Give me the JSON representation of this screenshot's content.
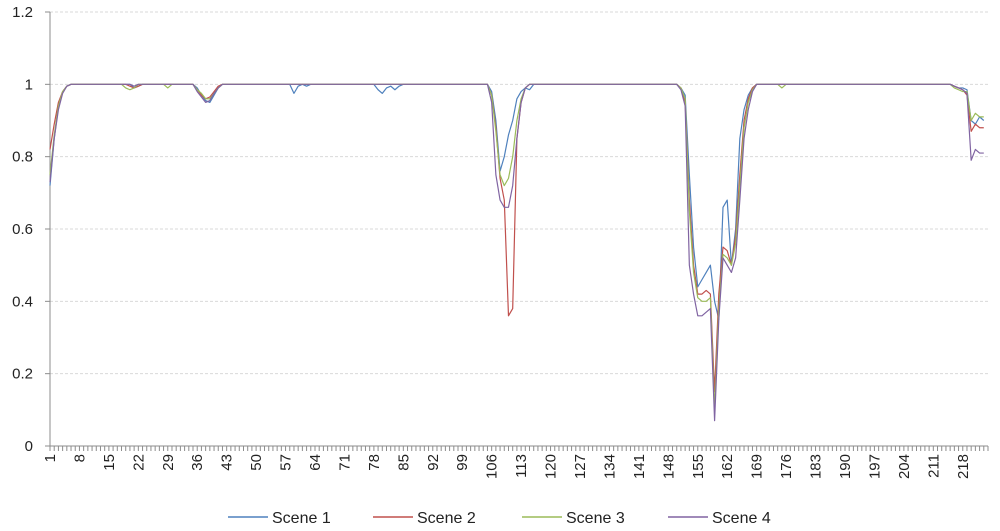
{
  "chart_data": {
    "type": "line",
    "title": "",
    "xlabel": "",
    "ylabel": "",
    "xlim": [
      1,
      224
    ],
    "ylim": [
      0,
      1.2
    ],
    "grid": true,
    "legend": "bottom",
    "y_ticks": [
      "0",
      "0.2",
      "0.4",
      "0.6",
      "0.8",
      "1",
      "1.2"
    ],
    "x_ticks": [
      "1",
      "8",
      "15",
      "22",
      "29",
      "36",
      "43",
      "50",
      "57",
      "64",
      "71",
      "78",
      "85",
      "92",
      "99",
      "106",
      "113",
      "120",
      "127",
      "134",
      "141",
      "148",
      "155",
      "162",
      "169",
      "176",
      "183",
      "190",
      "197",
      "204",
      "211",
      "218"
    ],
    "series": [
      {
        "name": "Scene 1",
        "color": "#4f81bd",
        "points": [
          [
            1,
            0.72
          ],
          [
            2,
            0.85
          ],
          [
            3,
            0.94
          ],
          [
            4,
            0.98
          ],
          [
            5,
            0.995
          ],
          [
            6,
            1
          ],
          [
            20,
            1
          ],
          [
            21,
            0.99
          ],
          [
            22,
            0.995
          ],
          [
            23,
            1
          ],
          [
            35,
            1
          ],
          [
            36,
            0.99
          ],
          [
            37,
            0.97
          ],
          [
            38,
            0.955
          ],
          [
            39,
            0.95
          ],
          [
            40,
            0.97
          ],
          [
            41,
            0.99
          ],
          [
            42,
            1
          ],
          [
            58,
            1
          ],
          [
            59,
            0.975
          ],
          [
            60,
            0.995
          ],
          [
            61,
            1
          ],
          [
            62,
            0.995
          ],
          [
            63,
            1
          ],
          [
            78,
            1
          ],
          [
            79,
            0.985
          ],
          [
            80,
            0.975
          ],
          [
            81,
            0.99
          ],
          [
            82,
            0.995
          ],
          [
            83,
            0.985
          ],
          [
            84,
            0.995
          ],
          [
            85,
            1
          ],
          [
            105,
            1
          ],
          [
            106,
            0.98
          ],
          [
            107,
            0.9
          ],
          [
            108,
            0.76
          ],
          [
            109,
            0.8
          ],
          [
            110,
            0.86
          ],
          [
            111,
            0.9
          ],
          [
            112,
            0.96
          ],
          [
            113,
            0.98
          ],
          [
            114,
            0.99
          ],
          [
            115,
            0.985
          ],
          [
            116,
            1
          ],
          [
            150,
            1
          ],
          [
            151,
            0.99
          ],
          [
            152,
            0.97
          ],
          [
            153,
            0.75
          ],
          [
            154,
            0.55
          ],
          [
            155,
            0.44
          ],
          [
            156,
            0.46
          ],
          [
            157,
            0.48
          ],
          [
            158,
            0.5
          ],
          [
            159,
            0.4
          ],
          [
            160,
            0.35
          ],
          [
            161,
            0.66
          ],
          [
            162,
            0.68
          ],
          [
            163,
            0.5
          ],
          [
            164,
            0.6
          ],
          [
            165,
            0.85
          ],
          [
            166,
            0.93
          ],
          [
            167,
            0.97
          ],
          [
            168,
            0.99
          ],
          [
            169,
            1
          ],
          [
            215,
            1
          ],
          [
            216,
            0.995
          ],
          [
            217,
            0.99
          ],
          [
            218,
            0.99
          ],
          [
            219,
            0.985
          ],
          [
            220,
            0.9
          ],
          [
            221,
            0.89
          ],
          [
            222,
            0.91
          ],
          [
            223,
            0.9
          ]
        ]
      },
      {
        "name": "Scene 2",
        "color": "#c0504d",
        "points": [
          [
            1,
            0.82
          ],
          [
            2,
            0.89
          ],
          [
            3,
            0.95
          ],
          [
            4,
            0.98
          ],
          [
            5,
            0.995
          ],
          [
            6,
            1
          ],
          [
            19,
            1
          ],
          [
            20,
            0.995
          ],
          [
            21,
            0.99
          ],
          [
            22,
            0.995
          ],
          [
            23,
            1
          ],
          [
            35,
            1
          ],
          [
            36,
            0.985
          ],
          [
            37,
            0.97
          ],
          [
            38,
            0.96
          ],
          [
            39,
            0.965
          ],
          [
            40,
            0.98
          ],
          [
            41,
            0.995
          ],
          [
            42,
            1
          ],
          [
            105,
            1
          ],
          [
            106,
            0.97
          ],
          [
            107,
            0.88
          ],
          [
            108,
            0.74
          ],
          [
            109,
            0.68
          ],
          [
            110,
            0.36
          ],
          [
            111,
            0.38
          ],
          [
            112,
            0.85
          ],
          [
            113,
            0.95
          ],
          [
            114,
            0.99
          ],
          [
            115,
            1
          ],
          [
            150,
            1
          ],
          [
            151,
            0.99
          ],
          [
            152,
            0.95
          ],
          [
            153,
            0.68
          ],
          [
            154,
            0.5
          ],
          [
            155,
            0.42
          ],
          [
            156,
            0.42
          ],
          [
            157,
            0.43
          ],
          [
            158,
            0.42
          ],
          [
            159,
            0.15
          ],
          [
            160,
            0.42
          ],
          [
            161,
            0.55
          ],
          [
            162,
            0.54
          ],
          [
            163,
            0.5
          ],
          [
            164,
            0.58
          ],
          [
            165,
            0.75
          ],
          [
            166,
            0.9
          ],
          [
            167,
            0.96
          ],
          [
            168,
            0.99
          ],
          [
            169,
            1
          ],
          [
            215,
            1
          ],
          [
            216,
            0.995
          ],
          [
            217,
            0.99
          ],
          [
            218,
            0.985
          ],
          [
            219,
            0.97
          ],
          [
            220,
            0.87
          ],
          [
            221,
            0.89
          ],
          [
            222,
            0.88
          ],
          [
            223,
            0.88
          ]
        ]
      },
      {
        "name": "Scene 3",
        "color": "#9bbb59",
        "points": [
          [
            1,
            0.75
          ],
          [
            2,
            0.86
          ],
          [
            3,
            0.94
          ],
          [
            4,
            0.98
          ],
          [
            5,
            0.995
          ],
          [
            6,
            1
          ],
          [
            18,
            1
          ],
          [
            19,
            0.99
          ],
          [
            20,
            0.985
          ],
          [
            21,
            0.99
          ],
          [
            22,
            1
          ],
          [
            28,
            1
          ],
          [
            29,
            0.99
          ],
          [
            30,
            1
          ],
          [
            35,
            1
          ],
          [
            36,
            0.985
          ],
          [
            37,
            0.975
          ],
          [
            38,
            0.96
          ],
          [
            39,
            0.96
          ],
          [
            40,
            0.975
          ],
          [
            41,
            0.99
          ],
          [
            42,
            1
          ],
          [
            105,
            1
          ],
          [
            106,
            0.97
          ],
          [
            107,
            0.87
          ],
          [
            108,
            0.75
          ],
          [
            109,
            0.72
          ],
          [
            110,
            0.74
          ],
          [
            111,
            0.8
          ],
          [
            112,
            0.9
          ],
          [
            113,
            0.96
          ],
          [
            114,
            0.99
          ],
          [
            115,
            1
          ],
          [
            150,
            1
          ],
          [
            151,
            0.99
          ],
          [
            152,
            0.96
          ],
          [
            153,
            0.65
          ],
          [
            154,
            0.48
          ],
          [
            155,
            0.41
          ],
          [
            156,
            0.4
          ],
          [
            157,
            0.4
          ],
          [
            158,
            0.41
          ],
          [
            159,
            0.1
          ],
          [
            160,
            0.38
          ],
          [
            161,
            0.53
          ],
          [
            162,
            0.52
          ],
          [
            163,
            0.5
          ],
          [
            164,
            0.56
          ],
          [
            165,
            0.72
          ],
          [
            166,
            0.88
          ],
          [
            167,
            0.95
          ],
          [
            168,
            0.985
          ],
          [
            169,
            1
          ],
          [
            174,
            1
          ],
          [
            175,
            0.99
          ],
          [
            176,
            1
          ],
          [
            215,
            1
          ],
          [
            216,
            0.99
          ],
          [
            217,
            0.985
          ],
          [
            218,
            0.98
          ],
          [
            219,
            0.98
          ],
          [
            220,
            0.9
          ],
          [
            221,
            0.92
          ],
          [
            222,
            0.91
          ],
          [
            223,
            0.91
          ]
        ]
      },
      {
        "name": "Scene 4",
        "color": "#8064a2",
        "points": [
          [
            1,
            0.73
          ],
          [
            2,
            0.85
          ],
          [
            3,
            0.93
          ],
          [
            4,
            0.975
          ],
          [
            5,
            0.995
          ],
          [
            6,
            1
          ],
          [
            20,
            1
          ],
          [
            21,
            0.995
          ],
          [
            22,
            1
          ],
          [
            35,
            1
          ],
          [
            36,
            0.98
          ],
          [
            37,
            0.965
          ],
          [
            38,
            0.95
          ],
          [
            39,
            0.955
          ],
          [
            40,
            0.975
          ],
          [
            41,
            0.99
          ],
          [
            42,
            1
          ],
          [
            105,
            1
          ],
          [
            106,
            0.95
          ],
          [
            107,
            0.75
          ],
          [
            108,
            0.68
          ],
          [
            109,
            0.66
          ],
          [
            110,
            0.66
          ],
          [
            111,
            0.72
          ],
          [
            112,
            0.85
          ],
          [
            113,
            0.95
          ],
          [
            114,
            0.99
          ],
          [
            115,
            1
          ],
          [
            150,
            1
          ],
          [
            151,
            0.985
          ],
          [
            152,
            0.94
          ],
          [
            153,
            0.5
          ],
          [
            154,
            0.42
          ],
          [
            155,
            0.36
          ],
          [
            156,
            0.36
          ],
          [
            157,
            0.37
          ],
          [
            158,
            0.38
          ],
          [
            159,
            0.07
          ],
          [
            160,
            0.35
          ],
          [
            161,
            0.52
          ],
          [
            162,
            0.5
          ],
          [
            163,
            0.48
          ],
          [
            164,
            0.52
          ],
          [
            165,
            0.68
          ],
          [
            166,
            0.85
          ],
          [
            167,
            0.93
          ],
          [
            168,
            0.98
          ],
          [
            169,
            1
          ],
          [
            215,
            1
          ],
          [
            216,
            0.995
          ],
          [
            217,
            0.99
          ],
          [
            218,
            0.985
          ],
          [
            219,
            0.975
          ],
          [
            220,
            0.79
          ],
          [
            221,
            0.82
          ],
          [
            222,
            0.81
          ],
          [
            223,
            0.81
          ]
        ]
      }
    ]
  }
}
